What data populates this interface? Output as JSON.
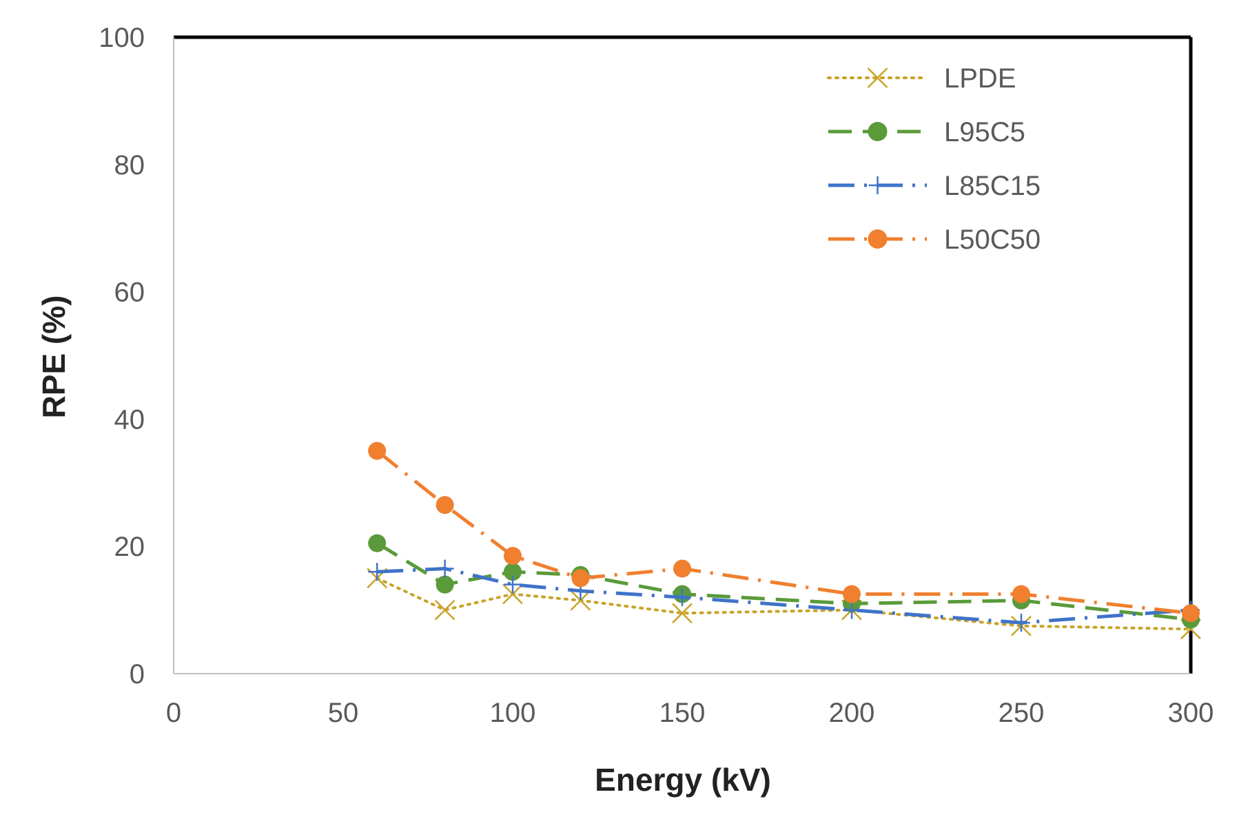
{
  "chart_data": {
    "type": "line",
    "title": "",
    "xlabel": "Energy (kV)",
    "ylabel": "RPE (%)",
    "xlim": [
      0,
      300
    ],
    "ylim": [
      0,
      100
    ],
    "xticks": [
      "0",
      "50",
      "100",
      "150",
      "200",
      "250",
      "300"
    ],
    "yticks": [
      "0",
      "20",
      "40",
      "60",
      "80",
      "100"
    ],
    "grid": false,
    "legend_position": "top-right",
    "x": [
      60,
      80,
      100,
      120,
      150,
      200,
      250,
      300
    ],
    "series": [
      {
        "name": "LPDE",
        "color": "#C9A227",
        "dash": "dotted",
        "marker": "x-mark",
        "values": [
          15,
          10,
          12.5,
          11.5,
          9.5,
          10,
          7.5,
          7
        ]
      },
      {
        "name": "L95C5",
        "color": "#5A9A3A",
        "dash": "long-dash",
        "marker": "circle",
        "values": [
          20.5,
          14,
          16,
          15.5,
          12.5,
          11,
          11.5,
          8.5
        ]
      },
      {
        "name": "L85C15",
        "color": "#3F73C9",
        "dash": "long-dash-dot",
        "marker": "plus",
        "values": [
          16,
          16.5,
          14,
          13,
          12,
          10,
          8,
          10
        ]
      },
      {
        "name": "L50C50",
        "color": "#F07F2E",
        "dash": "long-dash-dot",
        "marker": "circle",
        "values": [
          35,
          26.5,
          18.5,
          15,
          16.5,
          12.5,
          12.5,
          9.5
        ]
      }
    ]
  }
}
